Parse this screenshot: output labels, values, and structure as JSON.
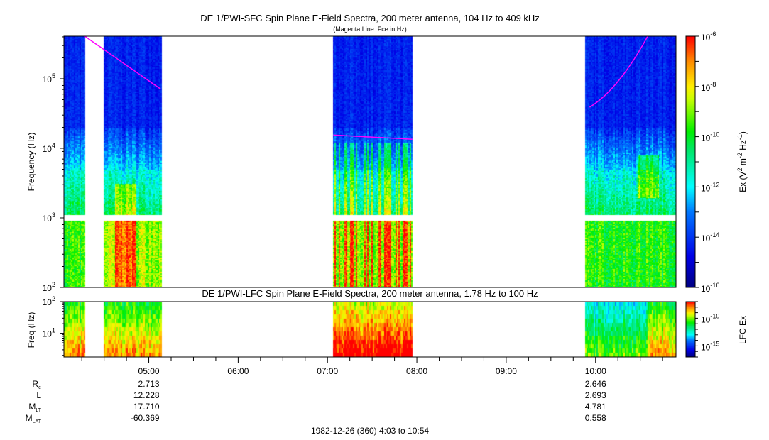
{
  "chart_data": {
    "type": "heatmap",
    "title": "DE 1/PWI-SFC  Spin Plane E-Field Spectra, 200 meter antenna, 104 Hz to 409 kHz",
    "subtitle": "(Magenta Line: Fce in Hz)",
    "ylabel": "Frequency (Hz)",
    "ylim_hz": [
      100,
      409000
    ],
    "yticks": [
      2,
      3,
      4,
      5
    ],
    "colorbar": {
      "label_main": "Ex (V",
      "label_sup1": "2",
      "label_mid": " m",
      "label_sup2": "-2",
      "label_hz": " Hz",
      "label_sup3": "-1",
      "label_end": ")",
      "range_log10": [
        -16,
        -6
      ],
      "ticks": [
        -6,
        -8,
        -10,
        -12,
        -14,
        -16
      ]
    },
    "time_range": [
      "04:03",
      "10:54"
    ],
    "data_intervals": [
      [
        "04:03",
        "04:17"
      ],
      [
        "04:30",
        "05:08"
      ],
      [
        "07:04",
        "07:57"
      ],
      [
        "09:53",
        "10:54"
      ]
    ],
    "fce_lines": [
      {
        "t": [
          "04:17",
          "05:08"
        ],
        "hz": [
          409000,
          71000
        ]
      },
      {
        "t": [
          "07:04",
          "07:57"
        ],
        "hz": [
          15500,
          13500
        ]
      },
      {
        "t": [
          "09:56",
          "10:35"
        ],
        "hz": [
          39000,
          409000
        ]
      }
    ],
    "lower": {
      "title": "DE 1/PWI-LFC  Spin Plane E-Field Spectra, 200 meter antenna, 1.78 Hz to 100 Hz",
      "ylabel": "Freq (Hz)",
      "ylim_hz": [
        1.78,
        100
      ],
      "yticks": [
        1,
        2
      ],
      "colorbar": {
        "label": "LFC Ex",
        "ticks": [
          -10,
          -15
        ],
        "range_log10": [
          -17,
          -7
        ]
      }
    },
    "xticks": [
      "05:00",
      "06:00",
      "07:00",
      "08:00",
      "09:00",
      "10:00"
    ],
    "ephemeris": {
      "labels": [
        {
          "main": "R",
          "sub": "e"
        },
        {
          "main": "L",
          "sub": ""
        },
        {
          "main": "M",
          "sub": "LT"
        },
        {
          "main": "M",
          "sub": "LAT"
        }
      ],
      "columns": [
        {
          "time": "05:00",
          "values": [
            "2.713",
            "12.228",
            "17.710",
            "-60.369"
          ]
        },
        {
          "time": "10:00",
          "values": [
            "2.646",
            "2.693",
            "4.781",
            "0.558"
          ]
        }
      ]
    },
    "footer": "1982-12-26 (360) 4:03 to 10:54",
    "fce_color": "#ff00ff"
  }
}
